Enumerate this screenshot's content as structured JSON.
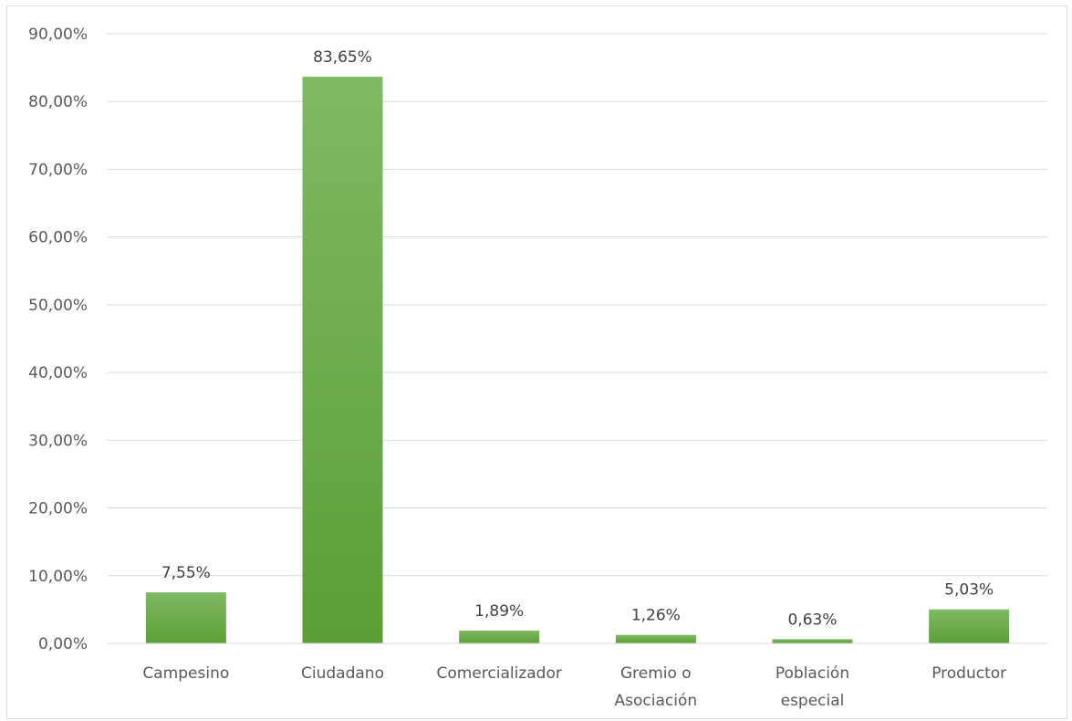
{
  "chart_data": {
    "type": "bar",
    "title": "",
    "xlabel": "",
    "ylabel": "",
    "categories": [
      [
        "Campesino"
      ],
      [
        "Ciudadano"
      ],
      [
        "Comercializador"
      ],
      [
        "Gremio o",
        "Asociación"
      ],
      [
        "Población",
        "especial"
      ],
      [
        "Productor"
      ]
    ],
    "values": [
      7.55,
      83.65,
      1.89,
      1.26,
      0.63,
      5.03
    ],
    "data_labels": [
      "7,55%",
      "83,65%",
      "1,89%",
      "1,26%",
      "0,63%",
      "5,03%"
    ],
    "ylim": [
      0,
      90
    ],
    "yticks": [
      0,
      10,
      20,
      30,
      40,
      50,
      60,
      70,
      80,
      90
    ],
    "ytick_labels": [
      "0,00%",
      "10,00%",
      "20,00%",
      "30,00%",
      "40,00%",
      "50,00%",
      "60,00%",
      "70,00%",
      "80,00%",
      "90,00%"
    ],
    "grid": true,
    "legend": "none",
    "colors": {
      "bar_top": "#7fba64",
      "bar_bottom": "#5c9e35",
      "grid": "#d9d9d9",
      "axis_text": "#595959"
    }
  }
}
